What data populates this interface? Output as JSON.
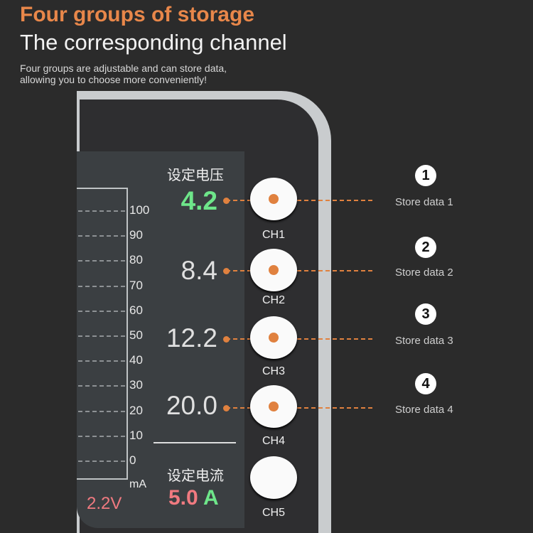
{
  "header": {
    "title": "Four groups of storage",
    "subtitle": "The corresponding channel",
    "description_line1": "Four groups are adjustable and can store data,",
    "description_line2": "allowing you to choose more conveniently!"
  },
  "screen": {
    "axis_ticks": [
      "100",
      "90",
      "80",
      "70",
      "60",
      "50",
      "40",
      "30",
      "20",
      "10",
      "0"
    ],
    "axis_unit": "mA",
    "voltage_readout": "2.2V",
    "set_voltage_label": "设定电压",
    "voltages": [
      "4.2",
      "8.4",
      "12.2",
      "20.0"
    ],
    "set_current_label": "设定电流",
    "current_value": "5.0",
    "current_unit": "A"
  },
  "channels": [
    "CH1",
    "CH2",
    "CH3",
    "CH4",
    "CH5"
  ],
  "callouts": [
    {
      "number": "1",
      "label": "Store data 1"
    },
    {
      "number": "2",
      "label": "Store data 2"
    },
    {
      "number": "3",
      "label": "Store data 3"
    },
    {
      "number": "4",
      "label": "Store data 4"
    }
  ],
  "colors": {
    "accent": "#e8874a",
    "green": "#6ee68a",
    "red": "#f07a80"
  }
}
